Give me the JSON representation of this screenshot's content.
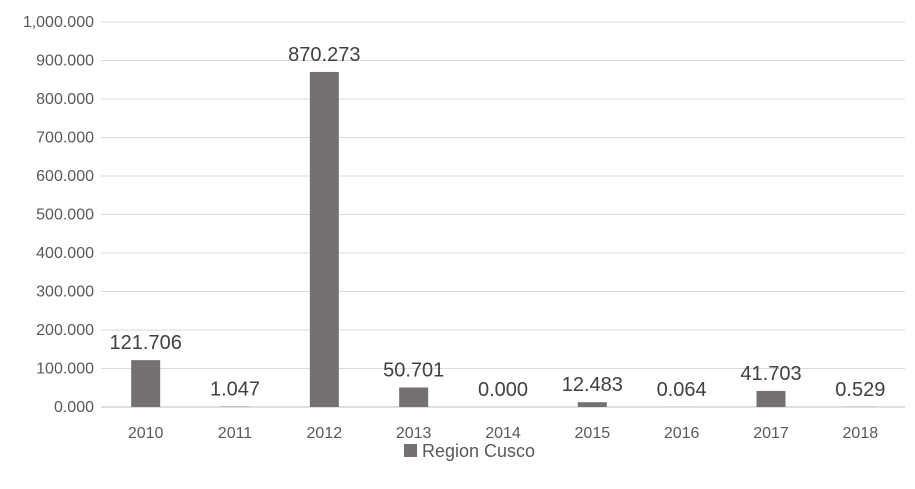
{
  "chart_data": {
    "type": "bar",
    "categories": [
      "2010",
      "2011",
      "2012",
      "2013",
      "2014",
      "2015",
      "2016",
      "2017",
      "2018"
    ],
    "series": [
      {
        "name": "Region Cusco",
        "values": [
          121.706,
          1.047,
          870.273,
          50.701,
          0.0,
          12.483,
          0.064,
          41.703,
          0.529
        ],
        "data_labels": [
          "121.706",
          "1.047",
          "870.273",
          "50.701",
          "0.000",
          "12.483",
          "0.064",
          "41.703",
          "0.529"
        ]
      }
    ],
    "ylim": [
      0,
      1000
    ],
    "yticks": [
      0,
      100,
      200,
      300,
      400,
      500,
      600,
      700,
      800,
      900,
      1000
    ],
    "ytick_labels": [
      "0.000",
      "100.000",
      "200.000",
      "300.000",
      "400.000",
      "500.000",
      "600.000",
      "700.000",
      "800.000",
      "900.000",
      "1,000.000"
    ],
    "grid": true,
    "legend": "bottom",
    "colors": {
      "bar": "#767171",
      "grid": "#d9d9d9",
      "axis": "#bfbfbf"
    }
  }
}
